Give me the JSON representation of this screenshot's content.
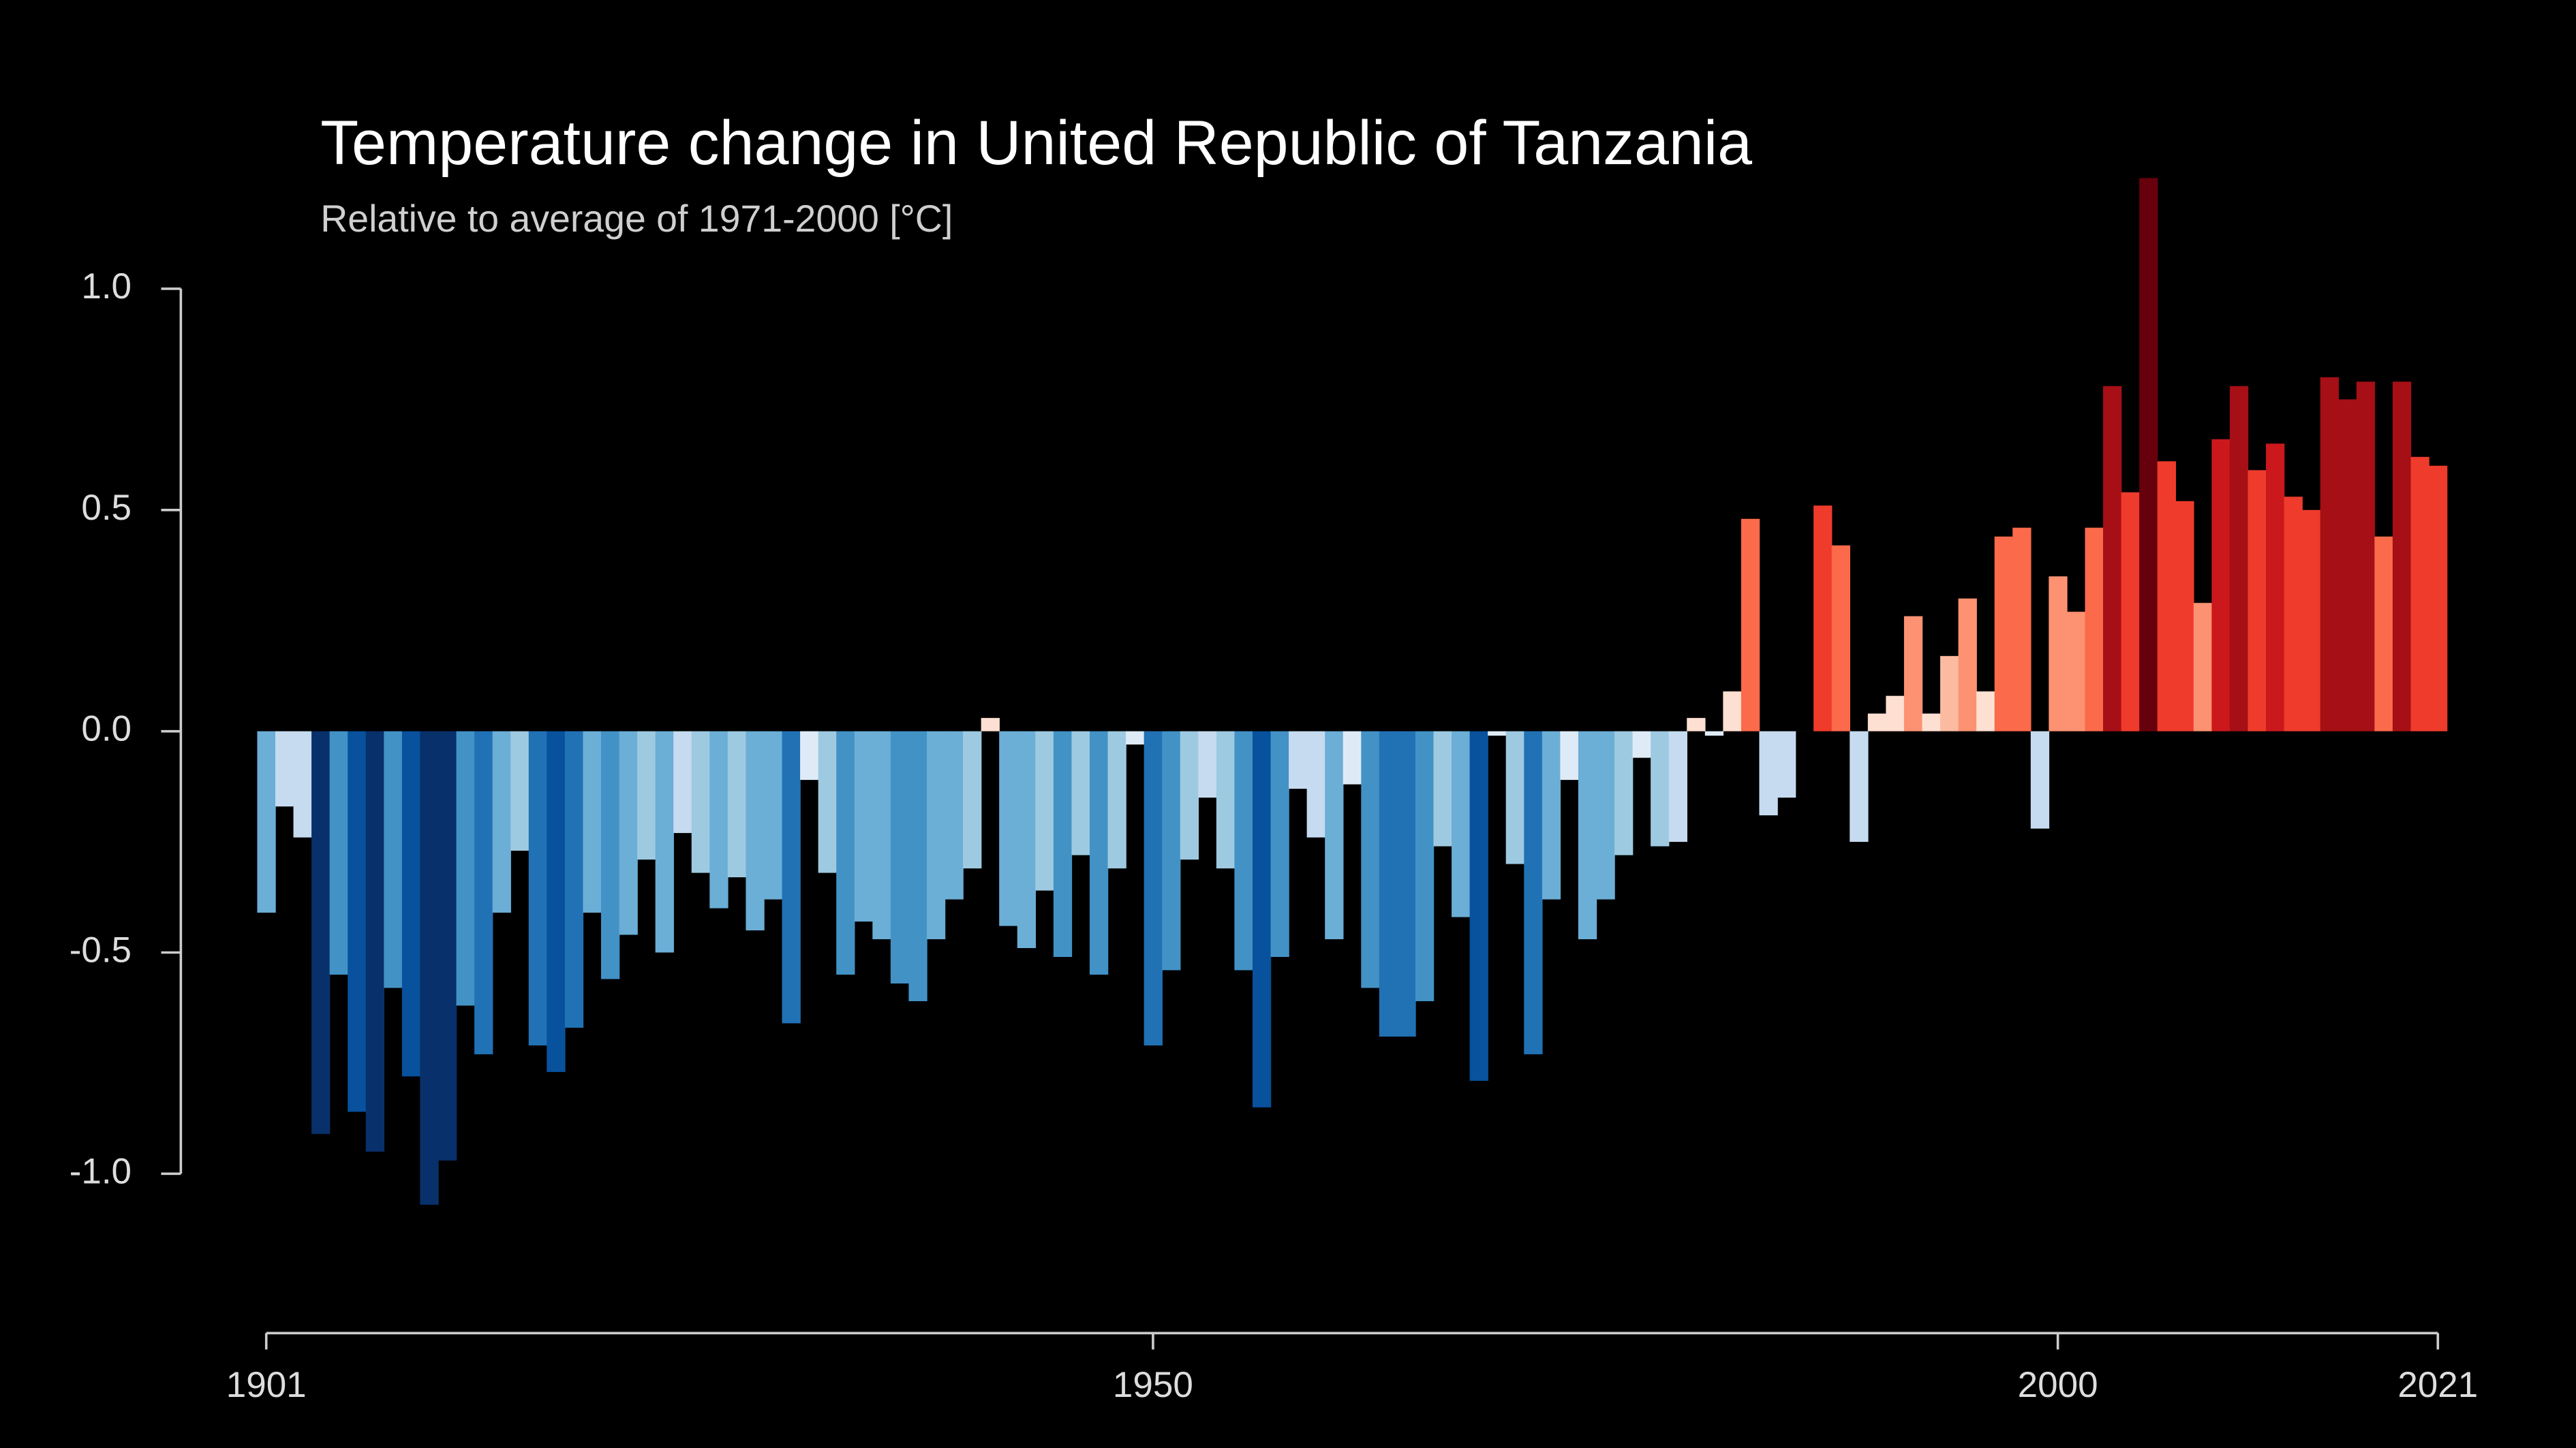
{
  "chart_data": {
    "type": "bar",
    "title": "Temperature change in United Republic of Tanzania",
    "subtitle": "Relative to average of 1971-2000  [°C]",
    "x": [
      1901,
      1902,
      1903,
      1904,
      1905,
      1906,
      1907,
      1908,
      1909,
      1910,
      1911,
      1912,
      1913,
      1914,
      1915,
      1916,
      1917,
      1918,
      1919,
      1920,
      1921,
      1922,
      1923,
      1924,
      1925,
      1926,
      1927,
      1928,
      1929,
      1930,
      1931,
      1932,
      1933,
      1934,
      1935,
      1936,
      1937,
      1938,
      1939,
      1940,
      1941,
      1942,
      1943,
      1944,
      1945,
      1946,
      1947,
      1948,
      1949,
      1950,
      1951,
      1952,
      1953,
      1954,
      1955,
      1956,
      1957,
      1958,
      1959,
      1960,
      1961,
      1962,
      1963,
      1964,
      1965,
      1966,
      1967,
      1968,
      1969,
      1970,
      1971,
      1972,
      1973,
      1974,
      1975,
      1976,
      1977,
      1978,
      1979,
      1980,
      1981,
      1982,
      1983,
      1984,
      1985,
      1986,
      1987,
      1988,
      1989,
      1990,
      1991,
      1992,
      1993,
      1994,
      1995,
      1996,
      1997,
      1998,
      1999,
      2000,
      2001,
      2002,
      2003,
      2004,
      2005,
      2006,
      2007,
      2008,
      2009,
      2010,
      2011,
      2012,
      2013,
      2014,
      2015,
      2016,
      2017,
      2018,
      2019,
      2020,
      2021
    ],
    "values": [
      -0.41,
      -0.17,
      -0.24,
      -0.91,
      -0.55,
      -0.86,
      -0.95,
      -0.58,
      -0.78,
      -1.07,
      -0.97,
      -0.62,
      -0.73,
      -0.41,
      -0.27,
      -0.71,
      -0.77,
      -0.67,
      -0.41,
      -0.56,
      -0.46,
      -0.29,
      -0.5,
      -0.23,
      -0.32,
      -0.4,
      -0.33,
      -0.45,
      -0.38,
      -0.66,
      -0.11,
      -0.32,
      -0.55,
      -0.43,
      -0.47,
      -0.57,
      -0.61,
      -0.47,
      -0.38,
      -0.31,
      0.03,
      -0.44,
      -0.49,
      -0.36,
      -0.51,
      -0.28,
      -0.55,
      -0.31,
      -0.03,
      -0.71,
      -0.54,
      -0.29,
      -0.15,
      -0.31,
      -0.54,
      -0.85,
      -0.51,
      -0.13,
      -0.24,
      -0.47,
      -0.12,
      -0.58,
      -0.69,
      -0.69,
      -0.61,
      -0.26,
      -0.42,
      -0.79,
      -0.01,
      -0.3,
      -0.73,
      -0.38,
      -0.11,
      -0.47,
      -0.38,
      -0.28,
      -0.06,
      -0.26,
      -0.25,
      0.03,
      -0.01,
      0.09,
      0.48,
      -0.19,
      -0.15,
      0.0,
      0.51,
      0.42,
      -0.25,
      0.04,
      0.08,
      0.26,
      0.04,
      0.17,
      0.3,
      0.09,
      0.44,
      0.46,
      -0.22,
      0.35,
      0.27,
      0.46,
      0.78,
      0.54,
      1.25,
      0.61,
      0.52,
      0.29,
      0.66,
      0.78,
      0.59,
      0.65,
      0.53,
      0.5,
      0.8,
      0.75,
      0.79,
      0.44,
      0.79,
      0.62,
      0.6
    ],
    "colormap": [
      "#08306b",
      "#08519c",
      "#2171b5",
      "#4292c6",
      "#6baed6",
      "#9ecae1",
      "#c6dbef",
      "#deebf7",
      "#fee0d2",
      "#fcbba1",
      "#fc9272",
      "#fb6a4a",
      "#ef3b2c",
      "#cb181d",
      "#a50f15",
      "#67000d"
    ],
    "xlim": [
      1901,
      2021
    ],
    "xticks": [
      1901,
      1950,
      2000,
      2021
    ],
    "ylim": [
      -1.36,
      1.3
    ],
    "yticks": [
      {
        "value": -1,
        "label": "-1.0"
      },
      {
        "value": -0.5,
        "label": "-0.5"
      },
      {
        "value": 0,
        "label": "0.0"
      },
      {
        "value": 0.5,
        "label": "0.5"
      },
      {
        "value": 1,
        "label": "1.0"
      }
    ],
    "grid": false
  }
}
